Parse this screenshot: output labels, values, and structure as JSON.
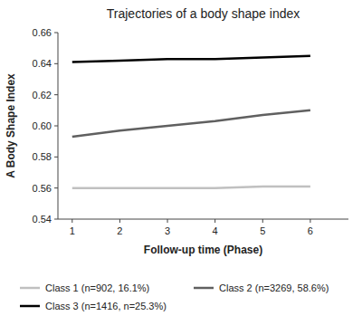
{
  "chart_data": {
    "type": "line",
    "title": "Trajectories of a body shape index",
    "xlabel": "Follow-up time (Phase)",
    "ylabel": "A Body Shape Index",
    "x": [
      1,
      2,
      3,
      4,
      5,
      6
    ],
    "series": [
      {
        "name": "Class 1 (n=902, 16.1%)",
        "color": "#c0c0c0",
        "values": [
          0.56,
          0.56,
          0.56,
          0.56,
          0.561,
          0.561
        ]
      },
      {
        "name": "Class 2 (n=3269, 58.6%)",
        "color": "#606060",
        "values": [
          0.593,
          0.597,
          0.6,
          0.603,
          0.607,
          0.61
        ]
      },
      {
        "name": "Class 3 (n=1416, n=25.3%)",
        "color": "#000000",
        "values": [
          0.641,
          0.642,
          0.643,
          0.643,
          0.644,
          0.645
        ]
      }
    ],
    "xlim": [
      0.7,
      6.8
    ],
    "ylim": [
      0.54,
      0.66
    ],
    "xticks": [
      1,
      2,
      3,
      4,
      5,
      6
    ],
    "yticks": [
      0.54,
      0.56,
      0.58,
      {
        "value": 0.6,
        "label": "0.60"
      },
      0.62,
      0.64,
      0.66
    ],
    "grid": false,
    "legend": "bottom"
  }
}
